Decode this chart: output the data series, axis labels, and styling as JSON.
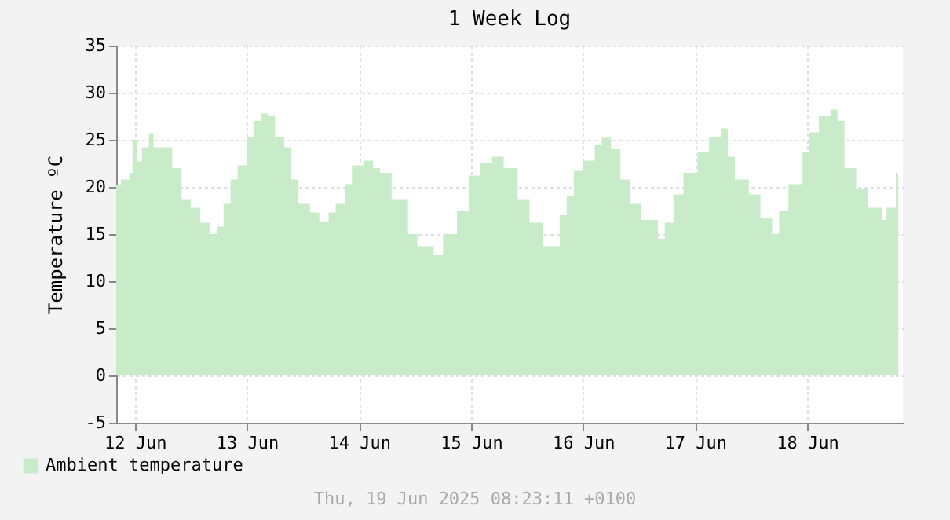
{
  "chart_data": {
    "type": "area",
    "title": "1 Week Log",
    "ylabel": "Temperature ºC",
    "annotations": [
      "Thu, 19 Jun 2025 08:23:11 +0100"
    ],
    "x": [
      "2025-06-12T08:00",
      "2025-06-12T09:00",
      "2025-06-12T11:00",
      "2025-06-12T11:30",
      "2025-06-12T12:30",
      "2025-06-12T13:30",
      "2025-06-12T15:00",
      "2025-06-12T16:00",
      "2025-06-12T18:00",
      "2025-06-12T20:00",
      "2025-06-12T22:00",
      "2025-06-13T00:00",
      "2025-06-13T02:00",
      "2025-06-13T04:00",
      "2025-06-13T05:30",
      "2025-06-13T07:00",
      "2025-06-13T08:30",
      "2025-06-13T10:00",
      "2025-06-13T12:00",
      "2025-06-13T13:30",
      "2025-06-13T15:00",
      "2025-06-13T16:30",
      "2025-06-13T18:00",
      "2025-06-13T20:00",
      "2025-06-13T21:30",
      "2025-06-13T23:00",
      "2025-06-14T01:30",
      "2025-06-14T03:30",
      "2025-06-14T05:30",
      "2025-06-14T07:00",
      "2025-06-14T09:00",
      "2025-06-14T10:30",
      "2025-06-14T13:00",
      "2025-06-14T15:00",
      "2025-06-14T16:30",
      "2025-06-14T19:00",
      "2025-06-14T22:30",
      "2025-06-15T00:30",
      "2025-06-15T04:00",
      "2025-06-15T06:00",
      "2025-06-15T09:00",
      "2025-06-15T11:30",
      "2025-06-15T14:00",
      "2025-06-15T16:30",
      "2025-06-15T19:00",
      "2025-06-15T22:00",
      "2025-06-16T00:30",
      "2025-06-16T03:30",
      "2025-06-16T04:30",
      "2025-06-16T07:00",
      "2025-06-16T08:30",
      "2025-06-16T10:00",
      "2025-06-16T12:00",
      "2025-06-16T14:30",
      "2025-06-16T16:00",
      "2025-06-16T18:00",
      "2025-06-16T20:00",
      "2025-06-16T22:00",
      "2025-06-17T00:30",
      "2025-06-17T04:00",
      "2025-06-17T05:30",
      "2025-06-17T07:30",
      "2025-06-17T09:30",
      "2025-06-17T12:30",
      "2025-06-17T15:00",
      "2025-06-17T17:30",
      "2025-06-17T19:00",
      "2025-06-17T20:30",
      "2025-06-17T23:30",
      "2025-06-18T02:00",
      "2025-06-18T04:30",
      "2025-06-18T06:00",
      "2025-06-18T08:00",
      "2025-06-18T11:00",
      "2025-06-18T12:30",
      "2025-06-18T14:30",
      "2025-06-18T17:00",
      "2025-06-18T18:30",
      "2025-06-18T20:00",
      "2025-06-18T22:30",
      "2025-06-19T01:00",
      "2025-06-19T04:00",
      "2025-06-19T05:00",
      "2025-06-19T07:00",
      "2025-06-19T07:30"
    ],
    "series": [
      {
        "name": "Ambient temperature",
        "color": "#c8ecc8",
        "values": [
          20.2,
          20.8,
          21.5,
          25,
          22.7,
          24.2,
          25.7,
          24.2,
          24.2,
          22,
          18.7,
          17.8,
          16.2,
          15,
          15.8,
          18.2,
          20.8,
          22.3,
          25.3,
          27,
          27.8,
          27.5,
          25.3,
          24.2,
          20.8,
          18.2,
          17.3,
          16.3,
          17.3,
          18.2,
          20.3,
          22.3,
          22.8,
          22,
          21.5,
          18.7,
          15,
          13.7,
          12.8,
          15,
          17.5,
          21.2,
          22.5,
          23.2,
          22,
          18.7,
          16.2,
          13.7,
          13.7,
          17,
          19,
          21.7,
          22.8,
          24.5,
          25.2,
          24,
          20.8,
          18.2,
          16.5,
          14.5,
          16.2,
          19.2,
          21.5,
          23.7,
          25.3,
          26.2,
          23.2,
          20.8,
          19.2,
          16.7,
          15,
          17.5,
          20.3,
          23.7,
          25.8,
          27.5,
          28.2,
          27,
          22,
          19.8,
          17.8,
          16.5,
          17.8,
          21.5,
          21.7
        ]
      }
    ],
    "xlim": [
      "2025-06-12T08:00",
      "2025-06-19T08:30"
    ],
    "xticks": [
      {
        "value": "2025-06-12T12:00",
        "label": "12 Jun"
      },
      {
        "value": "2025-06-13T12:00",
        "label": "13 Jun"
      },
      {
        "value": "2025-06-14T12:00",
        "label": "14 Jun"
      },
      {
        "value": "2025-06-15T12:00",
        "label": "15 Jun"
      },
      {
        "value": "2025-06-16T12:00",
        "label": "16 Jun"
      },
      {
        "value": "2025-06-17T12:00",
        "label": "17 Jun"
      },
      {
        "value": "2025-06-18T12:00",
        "label": "18 Jun"
      }
    ],
    "ylim": [
      -5,
      35
    ],
    "yticks": [
      -5,
      0,
      5,
      10,
      15,
      20,
      25,
      30,
      35
    ],
    "grid": true,
    "legend": "bottom left"
  }
}
